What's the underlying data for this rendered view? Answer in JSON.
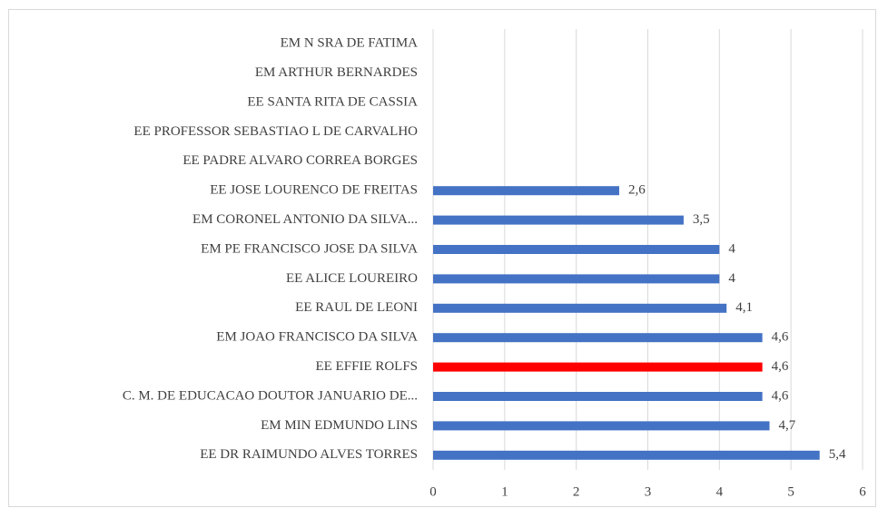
{
  "chart_data": {
    "type": "bar",
    "orientation": "horizontal",
    "categories": [
      "EM N SRA DE FATIMA",
      "EM ARTHUR BERNARDES",
      "EE SANTA RITA DE CASSIA",
      "EE PROFESSOR SEBASTIAO L DE CARVALHO",
      "EE PADRE ALVARO CORREA BORGES",
      "EE JOSE LOURENCO DE FREITAS",
      "EM CORONEL ANTONIO DA SILVA...",
      "EM PE FRANCISCO JOSE DA SILVA",
      "EE ALICE LOUREIRO",
      "EE RAUL DE LEONI",
      "EM JOAO FRANCISCO DA SILVA",
      "EE EFFIE ROLFS",
      "C. M. DE EDUCACAO DOUTOR JANUARIO DE...",
      "EM MIN EDMUNDO LINS",
      "EE DR RAIMUNDO ALVES TORRES"
    ],
    "values": [
      null,
      null,
      null,
      null,
      null,
      2.6,
      3.5,
      4,
      4,
      4.1,
      4.6,
      4.6,
      4.6,
      4.7,
      5.4
    ],
    "value_labels": [
      null,
      null,
      null,
      null,
      null,
      "2,6",
      "3,5",
      "4",
      "4",
      "4,1",
      "4,6",
      "4,6",
      "4,6",
      "4,7",
      "5,4"
    ],
    "colors": [
      "#4472c4",
      "#4472c4",
      "#4472c4",
      "#4472c4",
      "#4472c4",
      "#4472c4",
      "#4472c4",
      "#4472c4",
      "#4472c4",
      "#4472c4",
      "#4472c4",
      "#ff0000",
      "#4472c4",
      "#4472c4",
      "#4472c4"
    ],
    "xlim": [
      0,
      6
    ],
    "xticks": [
      0,
      1,
      2,
      3,
      4,
      5,
      6
    ],
    "grid": true
  }
}
